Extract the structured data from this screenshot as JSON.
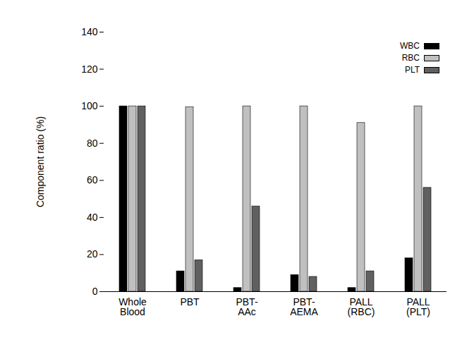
{
  "chart_data": {
    "type": "bar",
    "categories": [
      "Whole\nBlood",
      "PBT",
      "PBT-\nAAc",
      "PBT-\nAEMA",
      "PALL\n(RBC)",
      "PALL\n(PLT)"
    ],
    "series": [
      {
        "name": "WBC",
        "color": "#000000",
        "values": [
          100,
          11,
          2,
          9,
          2,
          18
        ]
      },
      {
        "name": "RBC",
        "color": "#c0c0c0",
        "values": [
          100,
          99.5,
          100,
          100,
          91,
          100
        ]
      },
      {
        "name": "PLT",
        "color": "#606060",
        "values": [
          100,
          17,
          46,
          8,
          11,
          56
        ]
      }
    ],
    "y_label": "Component ratio (%)",
    "ylim": [
      0,
      140
    ],
    "yticks": [
      0,
      20,
      40,
      60,
      80,
      100,
      120,
      140
    ],
    "legend": "upper right",
    "grid": false
  }
}
